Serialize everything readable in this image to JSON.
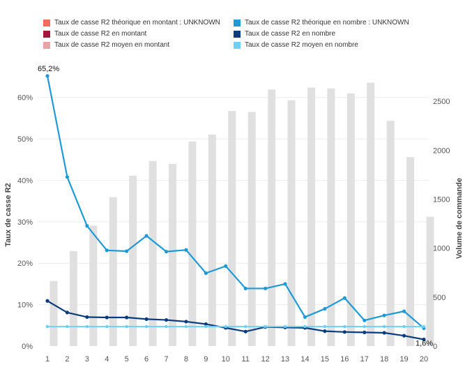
{
  "chart_data": {
    "type": "bar",
    "categories": [
      "1",
      "2",
      "3",
      "4",
      "5",
      "6",
      "7",
      "8",
      "9",
      "10",
      "11",
      "12",
      "13",
      "14",
      "15",
      "16",
      "17",
      "18",
      "19",
      "20"
    ],
    "legend": [
      {
        "label": "Taux de casse R2 théorique en montant : UNKNOWN",
        "color": "#f26b5b"
      },
      {
        "label": "Taux de casse R2 théorique en nombre : UNKNOWN",
        "color": "#1f9ad6"
      },
      {
        "label": "Taux de casse R2 en montant",
        "color": "#a3173d"
      },
      {
        "label": "Taux de casse R2 en nombre",
        "color": "#0b3d7e"
      },
      {
        "label": "Taux de casse R2 moyen en montant",
        "color": "#e8a4a4"
      },
      {
        "label": "Taux de casse R2 moyen en nombre",
        "color": "#6fd0f6"
      }
    ],
    "left_axis": {
      "label": "Taux de casse R2",
      "min": 0,
      "max": 65,
      "ticks": [
        0,
        10,
        20,
        30,
        40,
        50,
        60
      ],
      "tick_labels": [
        "0%",
        "10%",
        "20%",
        "30%",
        "40%",
        "50%",
        "60%"
      ]
    },
    "right_axis": {
      "label": "Volume de commande",
      "min": 0,
      "max": 2750,
      "ticks": [
        0,
        500,
        1000,
        1500,
        2000,
        2500
      ],
      "tick_labels": [
        "0",
        "500",
        "1000",
        "1500",
        "2000",
        "2500"
      ]
    },
    "series": [
      {
        "name": "Volume de commande",
        "type": "bar",
        "axis": "right",
        "color": "#e0e0e0",
        "values": [
          665,
          970,
          1230,
          1520,
          1740,
          1890,
          1860,
          2090,
          2160,
          2400,
          2390,
          2620,
          2510,
          2640,
          2630,
          2580,
          2690,
          2300,
          1930,
          1320
        ]
      },
      {
        "name": "Taux de casse R2 théorique en nombre : UNKNOWN",
        "type": "line",
        "axis": "left",
        "color": "#1f9ad6",
        "values": [
          65.2,
          40.8,
          29.0,
          23.1,
          22.9,
          26.6,
          22.8,
          23.2,
          17.6,
          19.3,
          13.9,
          13.9,
          15.0,
          7.0,
          9.0,
          11.6,
          6.2,
          7.4,
          8.4,
          4.3
        ]
      },
      {
        "name": "Taux de casse R2 en nombre",
        "type": "line",
        "axis": "left",
        "color": "#0b3d7e",
        "values": [
          10.9,
          8.1,
          7.0,
          6.9,
          6.9,
          6.5,
          6.3,
          5.9,
          5.3,
          4.4,
          3.5,
          4.6,
          4.5,
          4.4,
          3.6,
          3.4,
          3.3,
          3.2,
          2.5,
          1.6
        ]
      },
      {
        "name": "Taux de casse R2 moyen en nombre",
        "type": "line",
        "axis": "left",
        "color": "#6fd0f6",
        "values": [
          4.7,
          4.7,
          4.7,
          4.7,
          4.7,
          4.7,
          4.7,
          4.7,
          4.7,
          4.7,
          4.7,
          4.7,
          4.7,
          4.7,
          4.7,
          4.7,
          4.7,
          4.7,
          4.7,
          4.7
        ]
      }
    ],
    "annotations": [
      {
        "series": "Taux de casse R2 théorique en nombre : UNKNOWN",
        "index": 0,
        "text": "65,2%"
      },
      {
        "series": "Taux de casse R2 en nombre",
        "index": 19,
        "text": "1,6%"
      }
    ],
    "grid": true
  }
}
